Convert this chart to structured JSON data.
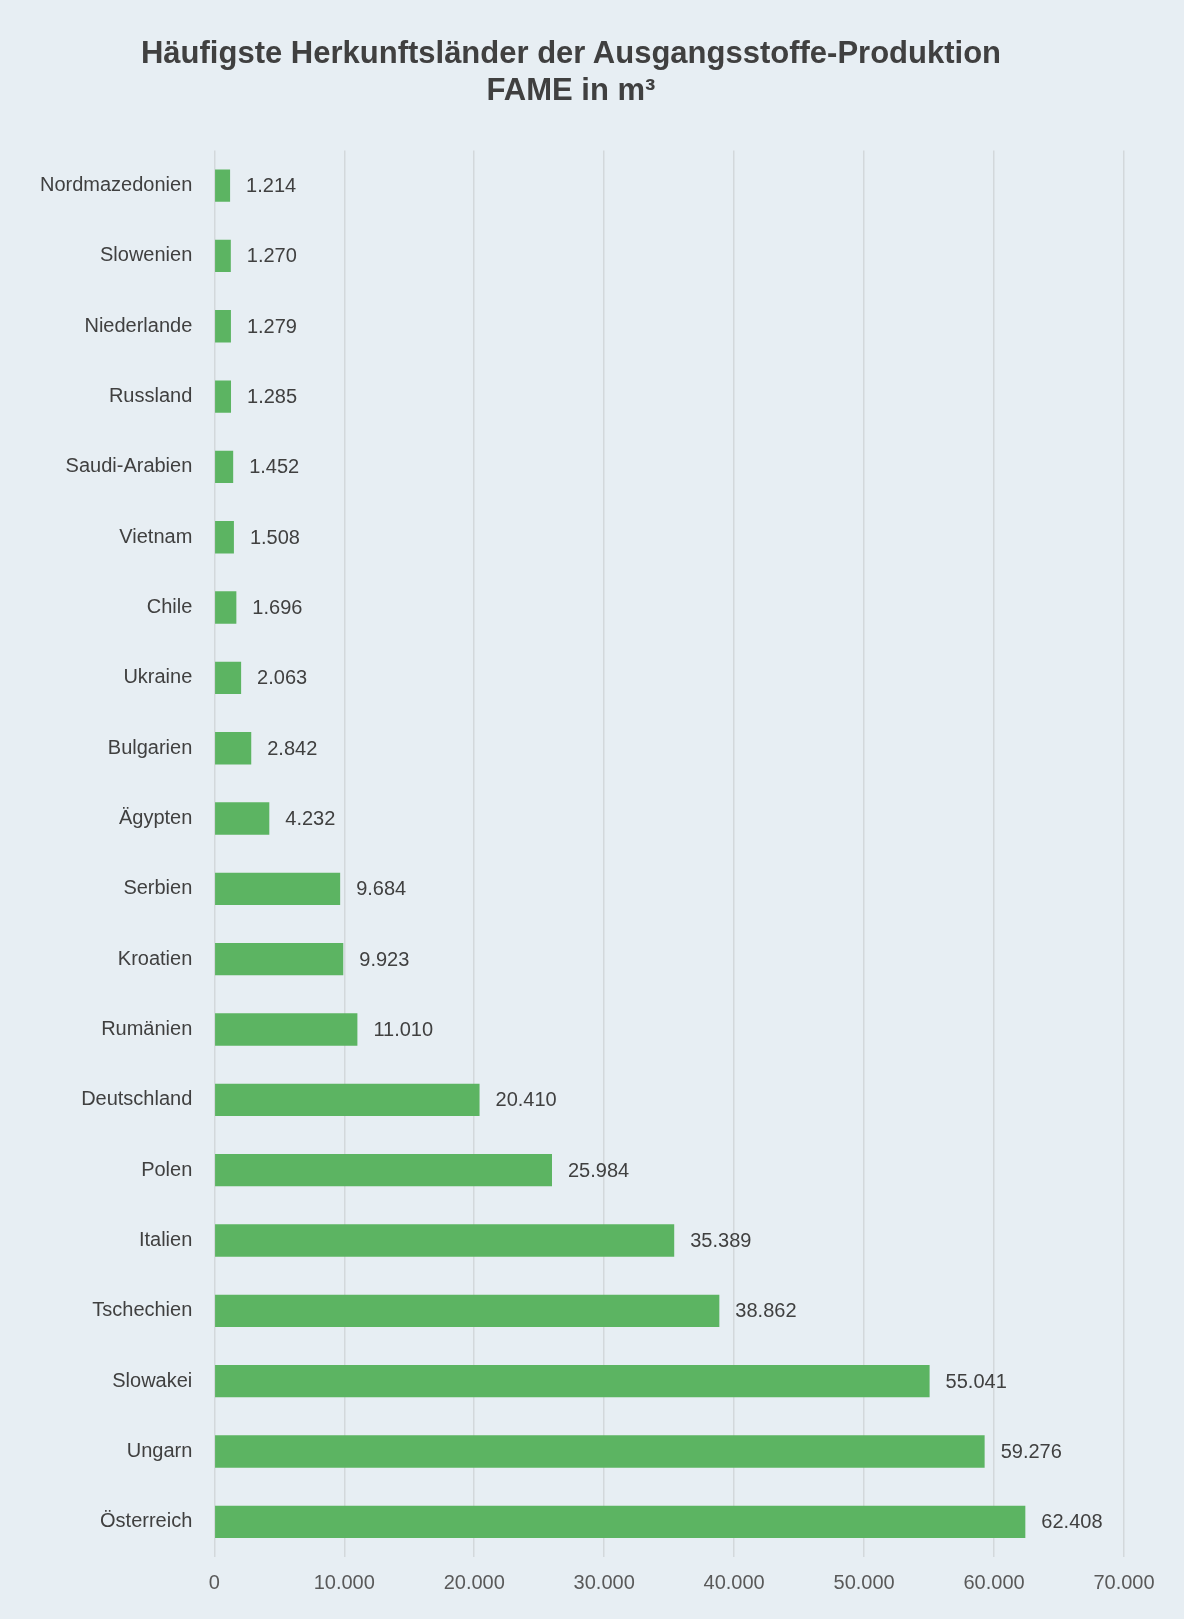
{
  "chart_data": {
    "type": "bar",
    "orientation": "horizontal",
    "title": "Häufigste Herkunftsländer der Ausgangsstoffe-Produktion\nFAME in m³",
    "categories": [
      "Nordmazedonien",
      "Slowenien",
      "Niederlande",
      "Russland",
      "Saudi-Arabien",
      "Vietnam",
      "Chile",
      "Ukraine",
      "Bulgarien",
      "Ägypten",
      "Serbien",
      "Kroatien",
      "Rumänien",
      "Deutschland",
      "Polen",
      "Italien",
      "Tschechien",
      "Slowakei",
      "Ungarn",
      "Österreich"
    ],
    "values": [
      1214,
      1270,
      1279,
      1285,
      1452,
      1508,
      1696,
      2063,
      2842,
      4232,
      9684,
      9923,
      11010,
      20410,
      25984,
      35389,
      38862,
      55041,
      59276,
      62408
    ],
    "value_labels": [
      "1.214",
      "1.270",
      "1.279",
      "1.285",
      "1.452",
      "1.508",
      "1.696",
      "2.063",
      "2.842",
      "4.232",
      "9.684",
      "9.923",
      "11.010",
      "20.410",
      "25.984",
      "35.389",
      "38.862",
      "55.041",
      "59.276",
      "62.408"
    ],
    "color": "#5cb462",
    "xlim": [
      0,
      70000
    ],
    "xticks": [
      0,
      {
        "value": 10000,
        "label": "10.000"
      },
      {
        "value": 20000,
        "label": "20.000"
      },
      {
        "value": 30000,
        "label": "30.000"
      },
      {
        "value": 40000,
        "label": "40.000"
      },
      {
        "value": 50000,
        "label": "50.000"
      },
      {
        "value": 60000,
        "label": "60.000"
      },
      {
        "value": 70000,
        "label": "70.000"
      }
    ],
    "grid": "x",
    "legend": false
  }
}
